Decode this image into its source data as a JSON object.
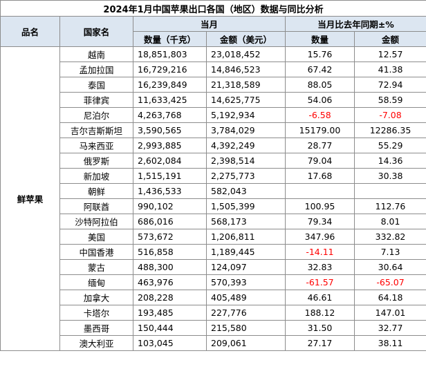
{
  "title": "2024年1月中国苹果出口各国（地区）数据与同比分析",
  "headers": {
    "product": "品名",
    "country": "国家名",
    "current_month": "当月",
    "yoy": "当月比去年同期±%",
    "qty": "数量（千克）",
    "amount": "金额（美元）",
    "yoy_qty": "数量",
    "yoy_amount": "金额"
  },
  "product_name": "鲜苹果",
  "neg_color": "#ff0000",
  "header_bg": "#dce6f1",
  "rows": [
    {
      "country": "越南",
      "qty": "18,851,803",
      "amount": "23,018,452",
      "yoy_qty": "15.76",
      "yoy_amount": "12.57"
    },
    {
      "country": "孟加拉国",
      "qty": "16,729,216",
      "amount": "14,846,523",
      "yoy_qty": "67.42",
      "yoy_amount": "41.38"
    },
    {
      "country": "泰国",
      "qty": "16,239,849",
      "amount": "21,318,589",
      "yoy_qty": "88.05",
      "yoy_amount": "72.94"
    },
    {
      "country": "菲律宾",
      "qty": "11,633,425",
      "amount": "14,625,775",
      "yoy_qty": "54.06",
      "yoy_amount": "58.59"
    },
    {
      "country": "尼泊尔",
      "qty": "4,263,768",
      "amount": "5,192,934",
      "yoy_qty": "-6.58",
      "yoy_amount": "-7.08"
    },
    {
      "country": "吉尔吉斯斯坦",
      "qty": "3,590,565",
      "amount": "3,784,029",
      "yoy_qty": "15179.00",
      "yoy_amount": "12286.35"
    },
    {
      "country": "马来西亚",
      "qty": "2,993,885",
      "amount": "4,392,249",
      "yoy_qty": "28.77",
      "yoy_amount": "55.29"
    },
    {
      "country": "俄罗斯",
      "qty": "2,602,084",
      "amount": "2,398,514",
      "yoy_qty": "79.04",
      "yoy_amount": "14.36"
    },
    {
      "country": "新加坡",
      "qty": "1,515,191",
      "amount": "2,275,773",
      "yoy_qty": "17.68",
      "yoy_amount": "30.38"
    },
    {
      "country": "朝鲜",
      "qty": "1,436,533",
      "amount": "582,043",
      "yoy_qty": "",
      "yoy_amount": ""
    },
    {
      "country": "阿联酋",
      "qty": "990,102",
      "amount": "1,505,399",
      "yoy_qty": "100.95",
      "yoy_amount": "112.76"
    },
    {
      "country": "沙特阿拉伯",
      "qty": "686,016",
      "amount": "568,173",
      "yoy_qty": "79.34",
      "yoy_amount": "8.01"
    },
    {
      "country": "美国",
      "qty": "573,672",
      "amount": "1,206,811",
      "yoy_qty": "347.96",
      "yoy_amount": "332.82"
    },
    {
      "country": "中国香港",
      "qty": "516,858",
      "amount": "1,189,445",
      "yoy_qty": "-14.11",
      "yoy_amount": "7.13"
    },
    {
      "country": "蒙古",
      "qty": "488,300",
      "amount": "124,097",
      "yoy_qty": "32.83",
      "yoy_amount": "30.64"
    },
    {
      "country": "缅甸",
      "qty": "463,976",
      "amount": "570,393",
      "yoy_qty": "-61.57",
      "yoy_amount": "-65.07"
    },
    {
      "country": "加拿大",
      "qty": "208,228",
      "amount": "405,489",
      "yoy_qty": "46.61",
      "yoy_amount": "64.18"
    },
    {
      "country": "卡塔尔",
      "qty": "193,485",
      "amount": "227,776",
      "yoy_qty": "188.12",
      "yoy_amount": "147.01"
    },
    {
      "country": "墨西哥",
      "qty": "150,444",
      "amount": "215,580",
      "yoy_qty": "31.50",
      "yoy_amount": "32.77"
    },
    {
      "country": "澳大利亚",
      "qty": "103,045",
      "amount": "209,061",
      "yoy_qty": "27.17",
      "yoy_amount": "38.11"
    }
  ]
}
